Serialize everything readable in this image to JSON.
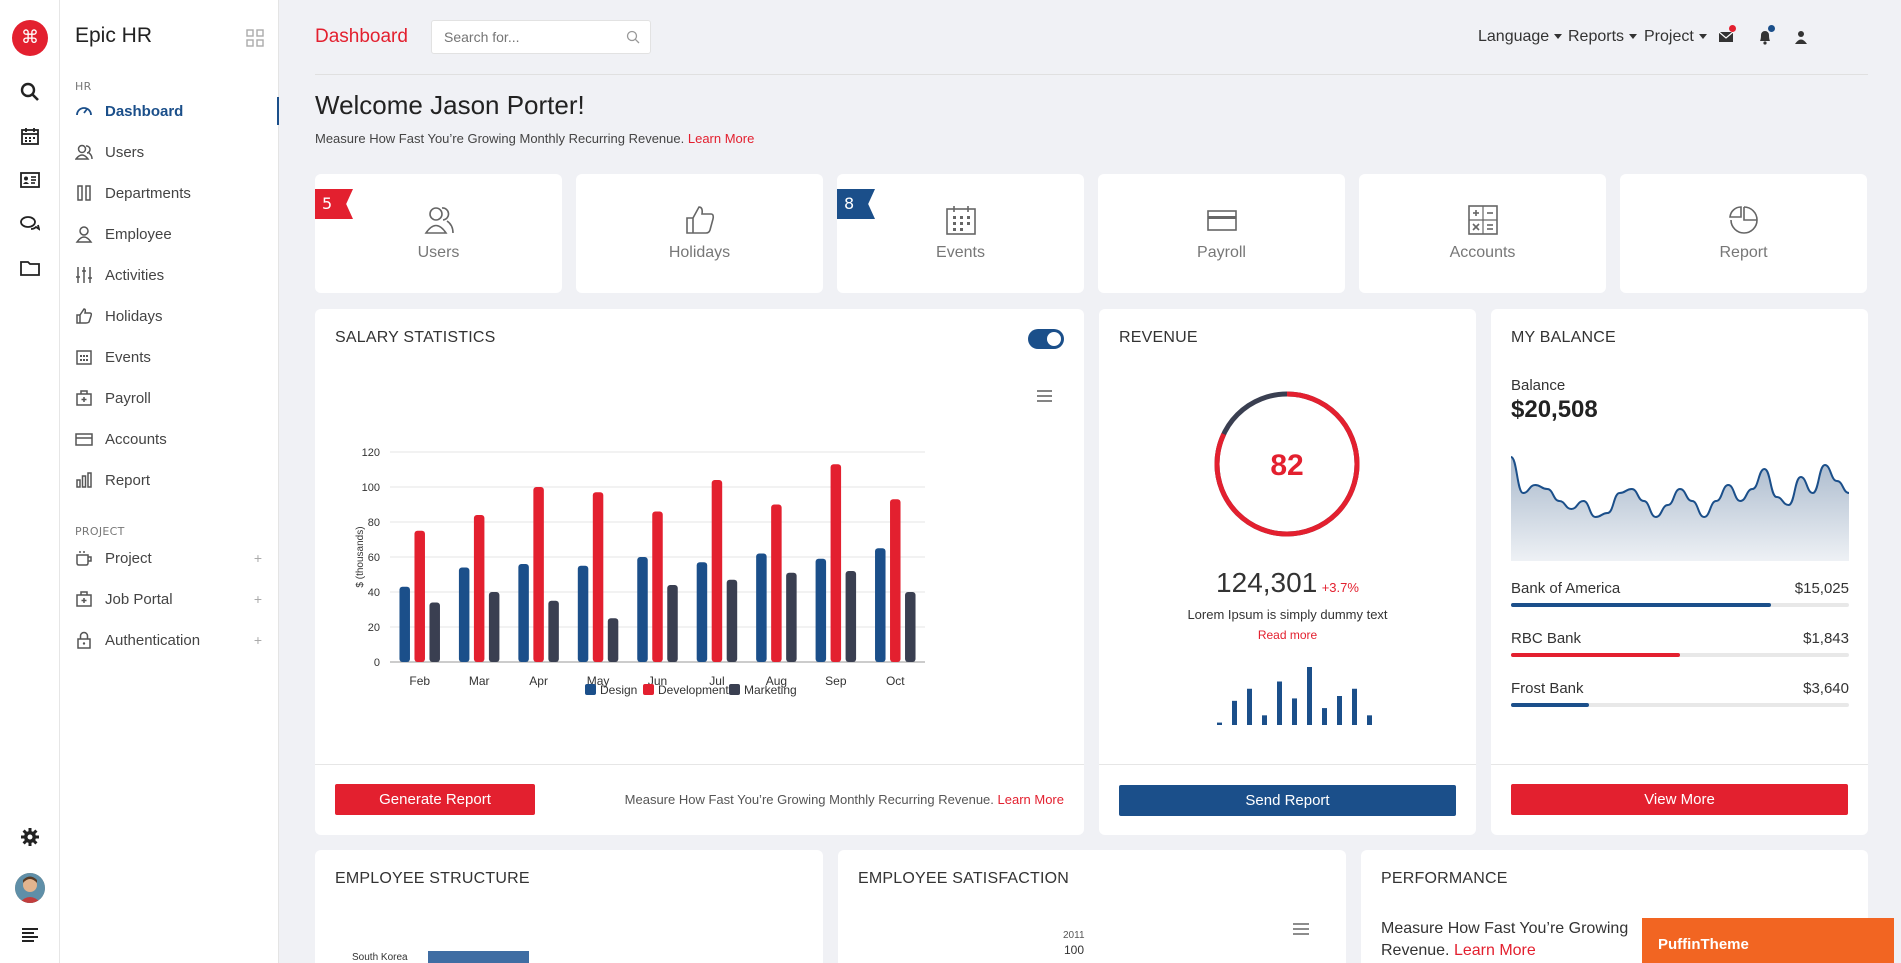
{
  "app": {
    "name": "Epic HR"
  },
  "sidebar": {
    "section_hr": "HR",
    "items": [
      {
        "label": "Dashboard"
      },
      {
        "label": "Users"
      },
      {
        "label": "Departments"
      },
      {
        "label": "Employee"
      },
      {
        "label": "Activities"
      },
      {
        "label": "Holidays"
      },
      {
        "label": "Events"
      },
      {
        "label": "Payroll"
      },
      {
        "label": "Accounts"
      },
      {
        "label": "Report"
      }
    ],
    "section_project": "PROJECT",
    "project_items": [
      {
        "label": "Project"
      },
      {
        "label": "Job Portal"
      },
      {
        "label": "Authentication"
      }
    ],
    "plus": "+"
  },
  "rail": {
    "logo": "⌘"
  },
  "header": {
    "page_title": "Dashboard",
    "search_placeholder": "Search for...",
    "nav": [
      "Language",
      "Reports",
      "Project"
    ]
  },
  "welcome": {
    "title": "Welcome Jason Porter!",
    "subtitle": "Measure How Fast You’re Growing Monthly Recurring Revenue.",
    "learn_more": "Learn More"
  },
  "tiles": [
    {
      "label": "Users",
      "badge": "5",
      "icon": "users-icon"
    },
    {
      "label": "Holidays",
      "badge": "",
      "icon": "thumbs-up-icon"
    },
    {
      "label": "Events",
      "badge": "8",
      "icon": "calendar-icon"
    },
    {
      "label": "Payroll",
      "badge": "",
      "icon": "credit-card-icon"
    },
    {
      "label": "Accounts",
      "badge": "",
      "icon": "calculator-icon"
    },
    {
      "label": "Report",
      "badge": "",
      "icon": "pie-chart-icon"
    }
  ],
  "colors": {
    "red": "#e3202f",
    "blue": "#1b4f8a",
    "dark": "#3a3f51"
  },
  "salary": {
    "title": "SALARY STATISTICS",
    "button": "Generate Report",
    "footer_text": "Measure How Fast You’re Growing Monthly Recurring Revenue.",
    "footer_link": "Learn More"
  },
  "chart_data": {
    "type": "bar",
    "categories": [
      "Feb",
      "Mar",
      "Apr",
      "May",
      "Jun",
      "Jul",
      "Aug",
      "Sep",
      "Oct"
    ],
    "series": [
      {
        "name": "Design",
        "color": "#1b4f8a",
        "values": [
          43,
          54,
          56,
          55,
          60,
          57,
          62,
          59,
          65
        ]
      },
      {
        "name": "Development",
        "color": "#e3202f",
        "values": [
          75,
          84,
          100,
          97,
          86,
          104,
          90,
          113,
          93
        ]
      },
      {
        "name": "Marketing",
        "color": "#3a3f51",
        "values": [
          34,
          40,
          35,
          25,
          44,
          47,
          51,
          52,
          40
        ]
      }
    ],
    "ylabel": "$ (thousands)",
    "yticks": [
      0,
      20,
      40,
      60,
      80,
      100,
      120
    ],
    "ylim": [
      0,
      120
    ],
    "grid": true,
    "legend": "bottom"
  },
  "revenue": {
    "title": "REVENUE",
    "gauge_value": "82",
    "gauge_fraction": 0.82,
    "amount": "124,301",
    "change": "+3.7%",
    "text": "Lorem Ipsum is simply dummy text",
    "read_more": "Read more",
    "button": "Send Report",
    "spark": [
      2,
      20,
      30,
      8,
      36,
      22,
      48,
      14,
      24,
      30,
      8
    ]
  },
  "balance": {
    "title": "MY BALANCE",
    "label": "Balance",
    "amount": "$20,508",
    "accounts": [
      {
        "name": "Bank of America",
        "value": "$15,025",
        "fraction": 0.77,
        "color": "#1b4f8a"
      },
      {
        "name": "RBC Bank",
        "value": "$1,843",
        "fraction": 0.5,
        "color": "#e3202f"
      },
      {
        "name": "Frost Bank",
        "value": "$3,640",
        "fraction": 0.23,
        "color": "#1b4f8a"
      }
    ],
    "button": "View More",
    "spark": [
      52,
      34,
      38,
      36,
      30,
      26,
      30,
      22,
      24,
      34,
      36,
      30,
      22,
      28,
      36,
      30,
      22,
      30,
      38,
      30,
      36,
      46,
      32,
      28,
      42,
      34,
      48,
      40,
      34
    ]
  },
  "bottom": {
    "structure_title": "EMPLOYEE STRUCTURE",
    "structure_country": "South Korea",
    "satisfaction_title": "EMPLOYEE SATISFACTION",
    "sat_year": "2011",
    "sat_value": "100",
    "performance_title": "PERFORMANCE",
    "perf_text": "Measure How Fast You’re Growing",
    "perf_text2": "Revenue.",
    "perf_link": "Learn More"
  },
  "promo": {
    "label": "PuffinTheme"
  }
}
